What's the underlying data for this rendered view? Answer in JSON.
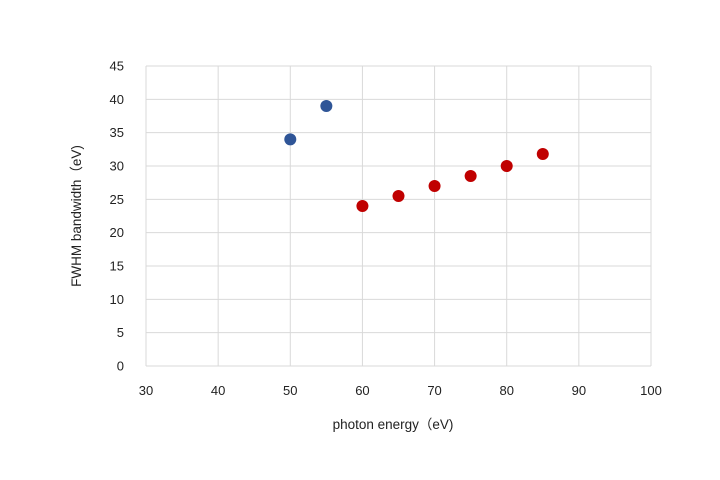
{
  "chart_data": {
    "type": "scatter",
    "title": "",
    "xlabel": "photon energy（eV)",
    "ylabel": "FWHM bandwidth（eV)",
    "xlim": [
      30,
      100
    ],
    "ylim": [
      0,
      45
    ],
    "x_ticks": [
      30,
      40,
      50,
      60,
      70,
      80,
      90,
      100
    ],
    "y_ticks": [
      0,
      5,
      10,
      15,
      20,
      25,
      30,
      35,
      40,
      45
    ],
    "grid": true,
    "legend": "none",
    "series": [
      {
        "color": "#2f5597",
        "points": [
          {
            "x": 50,
            "y": 34
          },
          {
            "x": 55,
            "y": 39
          }
        ]
      },
      {
        "color": "#c00000",
        "points": [
          {
            "x": 60,
            "y": 24
          },
          {
            "x": 65,
            "y": 25.5
          },
          {
            "x": 70,
            "y": 27
          },
          {
            "x": 75,
            "y": 28.5
          },
          {
            "x": 80,
            "y": 30
          },
          {
            "x": 85,
            "y": 31.8
          }
        ]
      }
    ]
  }
}
